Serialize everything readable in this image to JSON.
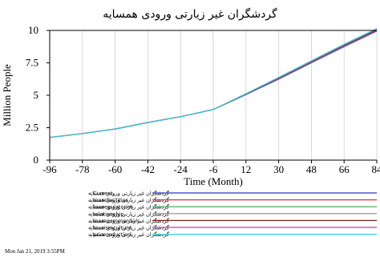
{
  "chart_data": {
    "type": "line",
    "title": "گردشگران غیر زیارتی ورودی همسایه",
    "xlabel": "Time (Month)",
    "ylabel": "Million People",
    "xlim": [
      -96,
      84
    ],
    "ylim": [
      0,
      10
    ],
    "x_ticks": [
      -96,
      -78,
      -60,
      -42,
      -24,
      -6,
      12,
      30,
      48,
      66,
      84
    ],
    "y_ticks": [
      0,
      2.5,
      5,
      7.5,
      10
    ],
    "y_tick_labels": [
      "0",
      "2.5",
      "5",
      "7.5",
      "10"
    ],
    "grid": "vertical",
    "legend_position": "bottom",
    "x": [
      -96,
      -78,
      -60,
      -42,
      -24,
      -6,
      12,
      30,
      48,
      66,
      84
    ],
    "series": [
      {
        "name": "گردشگران غیر زیارتی ورودی همسایه : Current",
        "color": "#2b35c8",
        "values": [
          1.75,
          2.05,
          2.4,
          2.9,
          3.35,
          3.9,
          5.05,
          6.25,
          7.5,
          8.75,
          9.95
        ]
      },
      {
        "name": "گردشگران غیر زیارتی ورودی همسایه : morefacilities",
        "color": "#e0303a",
        "values": [
          1.75,
          2.05,
          2.4,
          2.9,
          3.35,
          3.9,
          5.08,
          6.3,
          7.56,
          8.82,
          10.02
        ]
      },
      {
        "name": "گردشگران غیر زیارتی ورودی همسایه : lowregulatories",
        "color": "#2ea84a",
        "values": [
          1.75,
          2.05,
          2.4,
          2.9,
          3.35,
          3.9,
          5.1,
          6.33,
          7.6,
          8.86,
          10.07
        ]
      },
      {
        "name": "گردشگران غیر زیارتی ورودی همسایه : relationship",
        "color": "#8c8c8c",
        "values": [
          1.75,
          2.05,
          2.4,
          2.9,
          3.35,
          3.9,
          5.07,
          6.28,
          7.53,
          8.79,
          9.99
        ]
      },
      {
        "name": "گردشگران غیر زیارتی ورودی همسایه : morecommercials",
        "color": "#7a2a1e",
        "values": [
          1.75,
          2.05,
          2.4,
          2.9,
          3.35,
          3.9,
          5.09,
          6.31,
          7.58,
          8.84,
          10.04
        ]
      },
      {
        "name": "گردشگران غیر زیارتی ورودی همسایه : tourismculture",
        "color": "#c83a9a",
        "values": [
          1.75,
          2.05,
          2.4,
          2.9,
          3.35,
          3.9,
          5.11,
          6.35,
          7.62,
          8.89,
          10.1
        ]
      },
      {
        "name": "گردشگران غیر زیارتی ورودی همسایه : pricereduction",
        "color": "#2fd0e0",
        "values": [
          1.75,
          2.05,
          2.4,
          2.9,
          3.35,
          3.9,
          5.13,
          6.38,
          7.66,
          8.93,
          10.14
        ]
      }
    ]
  },
  "timestamp": "Mon Jan 21, 2019 3:55PM"
}
